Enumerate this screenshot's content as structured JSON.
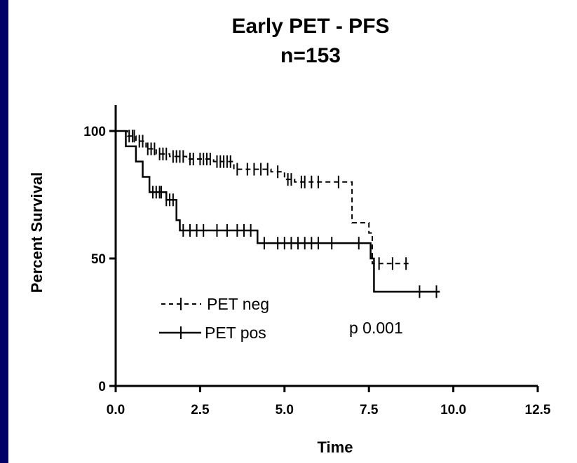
{
  "colors": {
    "background": "#000066",
    "panel": "#ffffff",
    "ink": "#000000"
  },
  "chart_data": {
    "type": "line",
    "chart_style": "kaplan-meier step curves with censor ticks",
    "title": "Early PET - PFS",
    "subtitle": "n=153",
    "xlabel": "Time",
    "ylabel": "Percent Survival",
    "xlim": [
      0,
      12.5
    ],
    "ylim": [
      0,
      100
    ],
    "x_ticks": [
      "0.0",
      "2.5",
      "5.0",
      "7.5",
      "10.0",
      "12.5"
    ],
    "y_ticks": [
      "0",
      "50",
      "100"
    ],
    "grid": false,
    "legend_position": "lower-left",
    "annotation": "p 0.001",
    "series": [
      {
        "name": "PET neg",
        "line_style": "dashed",
        "steps": [
          [
            0,
            100
          ],
          [
            0.35,
            98
          ],
          [
            0.6,
            96
          ],
          [
            0.9,
            93
          ],
          [
            1.2,
            91
          ],
          [
            1.6,
            90
          ],
          [
            2.1,
            89
          ],
          [
            2.9,
            88
          ],
          [
            3.5,
            85
          ],
          [
            4.6,
            84
          ],
          [
            5.0,
            81
          ],
          [
            5.3,
            80
          ],
          [
            7.0,
            64
          ],
          [
            7.5,
            60
          ],
          [
            7.6,
            48
          ]
        ],
        "end_x": 8.7,
        "censor_x": [
          0.4,
          0.5,
          0.55,
          0.7,
          0.8,
          0.95,
          1.05,
          1.15,
          1.3,
          1.4,
          1.5,
          1.7,
          1.8,
          1.9,
          2.0,
          2.2,
          2.3,
          2.5,
          2.6,
          2.7,
          2.8,
          3.0,
          3.1,
          3.2,
          3.3,
          3.4,
          3.6,
          3.9,
          4.1,
          4.3,
          4.5,
          4.8,
          5.1,
          5.2,
          5.5,
          5.6,
          5.8,
          6.0,
          6.6,
          7.8,
          8.2,
          8.6
        ]
      },
      {
        "name": "PET pos",
        "line_style": "solid",
        "steps": [
          [
            0,
            100
          ],
          [
            0.3,
            94
          ],
          [
            0.6,
            88
          ],
          [
            0.8,
            82
          ],
          [
            1.0,
            76
          ],
          [
            1.5,
            73
          ],
          [
            1.8,
            65
          ],
          [
            1.9,
            61
          ],
          [
            4.2,
            56
          ],
          [
            7.5,
            56
          ],
          [
            7.55,
            50
          ],
          [
            7.65,
            37
          ]
        ],
        "end_x": 9.6,
        "censor_x": [
          1.1,
          1.2,
          1.3,
          1.35,
          1.5,
          1.6,
          1.7,
          2.0,
          2.2,
          2.4,
          2.6,
          3.0,
          3.3,
          3.6,
          3.8,
          4.0,
          4.4,
          4.8,
          5.0,
          5.2,
          5.4,
          5.6,
          5.8,
          6.0,
          6.4,
          7.2,
          9.0,
          9.5
        ]
      }
    ]
  }
}
